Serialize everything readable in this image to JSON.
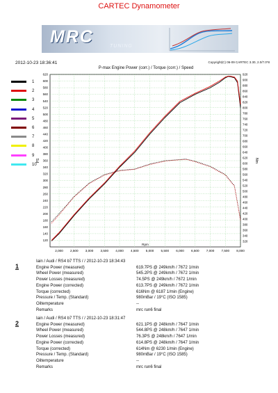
{
  "title": "CARTEC Dynamometer",
  "banner": {
    "logo_text": "MRC",
    "logo_sub": "TUNING"
  },
  "datetime": "2012-10-23 18:36:41",
  "copyright": "Copyright(C) 06-09 CARTEC 3.30, 2.0/7.0*8",
  "chart_title": "P-max Engine Power (corr.) / Torque (corr.) / Speed",
  "legend": [
    {
      "n": "1",
      "color": "#000000"
    },
    {
      "n": "2",
      "color": "#e01010"
    },
    {
      "n": "3",
      "color": "#0a8a0a"
    },
    {
      "n": "4",
      "color": "#1010d0"
    },
    {
      "n": "5",
      "color": "#7a1a7a"
    },
    {
      "n": "6",
      "color": "#800000"
    },
    {
      "n": "7",
      "color": "#8a8a8a"
    },
    {
      "n": "8",
      "color": "#f0f000"
    },
    {
      "n": "9",
      "color": "#ff40ff"
    },
    {
      "n": "10",
      "color": "#40e8f0"
    }
  ],
  "chart_data": {
    "type": "line",
    "title": "P-max Engine Power (corr.) / Torque (corr.) / Speed",
    "xlabel": "Rpm",
    "ylabel_left": "PS",
    "ylabel_right": "Nm",
    "xlim": [
      1700,
      8000
    ],
    "ylim_left": [
      100,
      620
    ],
    "ylim_right": [
      300,
      920
    ],
    "x_ticks": [
      "2,000",
      "2,500",
      "3,000",
      "3,500",
      "4,000",
      "4,500",
      "5,000",
      "5,500",
      "6,000",
      "6,500",
      "7,000",
      "7,500",
      "8,000"
    ],
    "y_left_ticks": [
      "120",
      "140",
      "160",
      "180",
      "200",
      "220",
      "240",
      "260",
      "280",
      "300",
      "320",
      "340",
      "360",
      "380",
      "400",
      "420",
      "440",
      "460",
      "480",
      "500",
      "520",
      "540",
      "560",
      "580",
      "600",
      "620"
    ],
    "y_right_ticks": [
      "320",
      "340",
      "360",
      "380",
      "400",
      "420",
      "440",
      "460",
      "480",
      "500",
      "520",
      "540",
      "560",
      "580",
      "600",
      "620",
      "640",
      "660",
      "680",
      "700",
      "720",
      "740",
      "760",
      "780",
      "800",
      "820",
      "840",
      "860",
      "880",
      "900",
      "920"
    ],
    "series": [
      {
        "name": "1",
        "metric": "power",
        "unit": "PS",
        "color": "#000000",
        "style": "solid",
        "x": [
          1750,
          2000,
          2500,
          3000,
          3500,
          4000,
          4500,
          5000,
          5500,
          6000,
          6500,
          7000,
          7300,
          7500,
          7600,
          7672,
          7800,
          7900,
          8000
        ],
        "y": [
          118,
          140,
          195,
          245,
          290,
          340,
          385,
          440,
          490,
          535,
          560,
          580,
          596,
          610,
          614,
          613,
          610,
          595,
          520
        ]
      },
      {
        "name": "2",
        "metric": "power",
        "unit": "PS",
        "color": "#e01010",
        "style": "solid",
        "x": [
          1750,
          2000,
          2500,
          3000,
          3500,
          4000,
          4500,
          5000,
          5500,
          6000,
          6500,
          7000,
          7300,
          7500,
          7600,
          7647,
          7800,
          7900,
          8000
        ],
        "y": [
          120,
          143,
          198,
          248,
          293,
          343,
          389,
          444,
          494,
          539,
          563,
          584,
          600,
          612,
          615,
          615,
          612,
          600,
          530
        ]
      },
      {
        "name": "1",
        "metric": "torque",
        "unit": "Nm",
        "color": "#000000",
        "style": "dotted",
        "x": [
          1750,
          2000,
          2250,
          2500,
          3000,
          3500,
          4000,
          4500,
          5000,
          5500,
          5750,
          6000,
          6187,
          6500,
          7000,
          7500,
          7800,
          8000
        ],
        "y": [
          390,
          420,
          450,
          482,
          530,
          560,
          575,
          580,
          598,
          610,
          612,
          614,
          616,
          608,
          590,
          560,
          520,
          400
        ]
      },
      {
        "name": "2",
        "metric": "torque",
        "unit": "Nm",
        "color": "#e01010",
        "style": "dotted",
        "x": [
          1750,
          2000,
          2250,
          2500,
          3000,
          3500,
          4000,
          4500,
          5000,
          5500,
          5750,
          6000,
          6230,
          6500,
          7000,
          7500,
          7800,
          8000
        ],
        "y": [
          385,
          415,
          448,
          480,
          528,
          558,
          573,
          579,
          596,
          608,
          611,
          613,
          614,
          606,
          588,
          558,
          518,
          395
        ]
      }
    ]
  },
  "runs": [
    {
      "num": "1",
      "header": "Iain / Audi / RS4 b7 TTS /  / 2012-10-23 18:34:43",
      "rows": [
        {
          "label": "Engine Power (measured)",
          "value": "619.7PS @ 249km/h / 7672 1/min"
        },
        {
          "label": "Wheel Power (measured)",
          "value": "545.2PS @ 249km/h / 7672 1/min"
        },
        {
          "label": "Power Losses (measured)",
          "value": "74.5PS @ 249km/h / 7672 1/min"
        },
        {
          "label": "Engine Power (corrected)",
          "value": "613.7PS @ 249km/h / 7672 1/min"
        },
        {
          "label": "Torque (corrected)",
          "value": "616Nm @ 6187 1/min (Engine)"
        },
        {
          "label": "Pressure / Temp. (Standard)",
          "value": "980mBar / 19°C    (ISO 1585)"
        },
        {
          "label": "Oiltemperature",
          "value": "--"
        },
        {
          "label": "Remarks",
          "value": "mrc run6 final"
        }
      ]
    },
    {
      "num": "2",
      "header": "Iain / Audi / RS4 b7 TTS /  / 2012-10-23 18:31:47",
      "rows": [
        {
          "label": "Engine Power (measured)",
          "value": "621.1PS @ 248km/h / 7647 1/min"
        },
        {
          "label": "Wheel Power (measured)",
          "value": "544.8PS @ 248km/h / 7647 1/min"
        },
        {
          "label": "Power Losses (measured)",
          "value": "76.3PS @ 248km/h / 7647 1/min"
        },
        {
          "label": "Engine Power (corrected)",
          "value": "614.8PS @ 248km/h / 7647 1/min"
        },
        {
          "label": "Torque (corrected)",
          "value": "614Nm @ 6230 1/min (Engine)"
        },
        {
          "label": "Pressure / Temp. (Standard)",
          "value": "980mBar / 19°C    (ISO 1585)"
        },
        {
          "label": "Oiltemperature",
          "value": "--"
        },
        {
          "label": "Remarks",
          "value": "mrc run6 final"
        }
      ]
    }
  ]
}
